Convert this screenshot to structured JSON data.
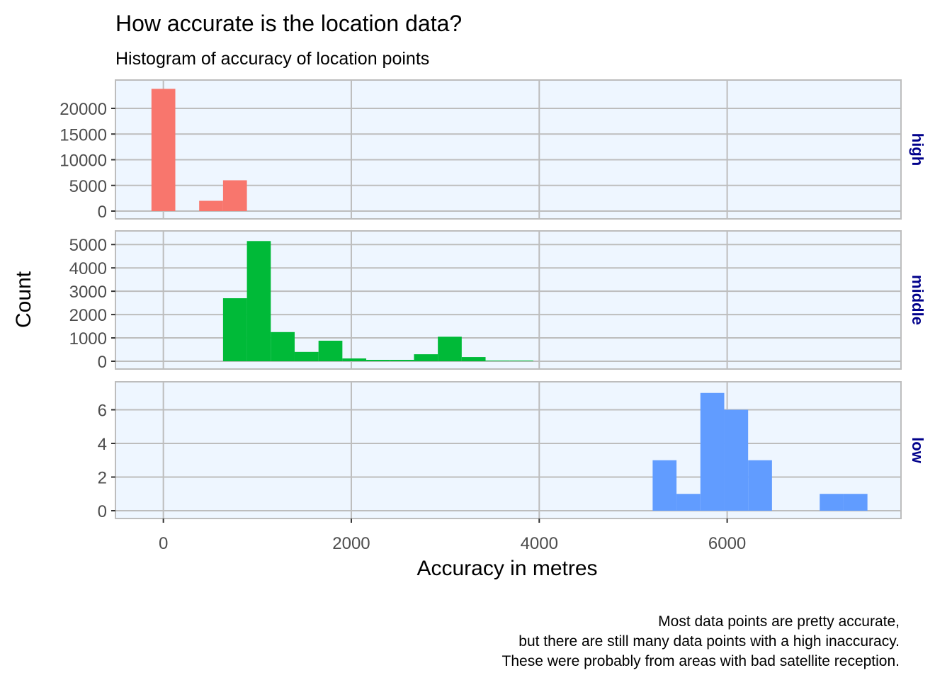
{
  "chart_data": {
    "type": "bar",
    "title": "How accurate is the location data?",
    "subtitle": "Histogram of accuracy of location points",
    "xlabel": "Accuracy in metres",
    "ylabel": "Count",
    "caption": [
      "Most data points are pretty accurate,",
      "but there are still many data points with a high inaccuracy.",
      "These were probably from areas with bad satellite reception."
    ],
    "xlim": [
      -510,
      7850
    ],
    "x_ticks": [
      0,
      2000,
      4000,
      6000
    ],
    "x_tick_labels": [
      "0",
      "2000",
      "4000",
      "6000"
    ],
    "bin_width": 254,
    "grid": true,
    "facets": [
      {
        "name": "high",
        "color": "#f8766d",
        "ylim": [
          0,
          24000
        ],
        "y_ticks": [
          0,
          5000,
          10000,
          15000,
          20000
        ],
        "y_tick_labels": [
          "0",
          "5000",
          "10000",
          "15000",
          "20000"
        ],
        "bins": [
          {
            "x": 0,
            "count": 23800
          },
          {
            "x": 508,
            "count": 2000
          },
          {
            "x": 762,
            "count": 6000
          }
        ]
      },
      {
        "name": "middle",
        "color": "#00ba38",
        "ylim": [
          0,
          5250
        ],
        "y_ticks": [
          0,
          1000,
          2000,
          3000,
          4000,
          5000
        ],
        "y_tick_labels": [
          "0",
          "1000",
          "2000",
          "3000",
          "4000",
          "5000"
        ],
        "bins": [
          {
            "x": 762,
            "count": 2700
          },
          {
            "x": 1016,
            "count": 5150
          },
          {
            "x": 1270,
            "count": 1250
          },
          {
            "x": 1524,
            "count": 400
          },
          {
            "x": 1778,
            "count": 880
          },
          {
            "x": 2032,
            "count": 120
          },
          {
            "x": 2286,
            "count": 60
          },
          {
            "x": 2540,
            "count": 60
          },
          {
            "x": 2794,
            "count": 300
          },
          {
            "x": 3048,
            "count": 1050
          },
          {
            "x": 3302,
            "count": 180
          },
          {
            "x": 3556,
            "count": 30
          },
          {
            "x": 3810,
            "count": 30
          }
        ]
      },
      {
        "name": "low",
        "color": "#619cff",
        "ylim": [
          0,
          7.2
        ],
        "y_ticks": [
          0,
          2,
          4,
          6
        ],
        "y_tick_labels": [
          "0",
          "2",
          "4",
          "6"
        ],
        "bins": [
          {
            "x": 5334,
            "count": 3
          },
          {
            "x": 5588,
            "count": 1
          },
          {
            "x": 5842,
            "count": 7
          },
          {
            "x": 6096,
            "count": 6
          },
          {
            "x": 6350,
            "count": 3
          },
          {
            "x": 7112,
            "count": 1
          },
          {
            "x": 7366,
            "count": 1
          }
        ]
      }
    ]
  }
}
